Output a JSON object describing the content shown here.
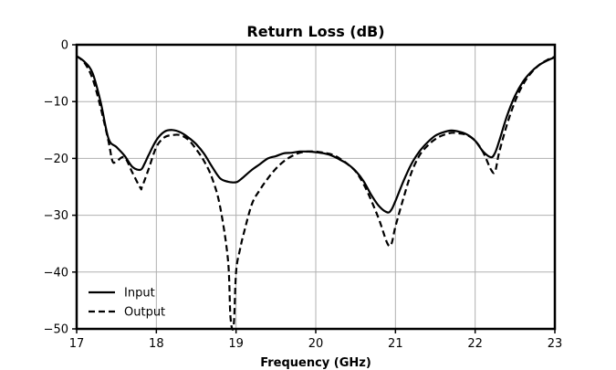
{
  "chart_data": {
    "type": "line",
    "title": "Return Loss (dB)",
    "xlabel": "Frequency (GHz)",
    "ylabel": "",
    "xlim": [
      17,
      23
    ],
    "ylim": [
      -50,
      0
    ],
    "xticks": [
      17,
      18,
      19,
      20,
      21,
      22,
      23
    ],
    "yticks": [
      0,
      -10,
      -20,
      -30,
      -40,
      -50
    ],
    "ytick_labels": [
      "0",
      "−10",
      "−20",
      "−30",
      "−40",
      "−50"
    ],
    "grid": true,
    "legend_position": "bottom-left",
    "series": [
      {
        "name": "Input",
        "style": "solid",
        "color": "#000000",
        "x": [
          17.0,
          17.1,
          17.2,
          17.3,
          17.4,
          17.5,
          17.6,
          17.7,
          17.8,
          17.85,
          17.9,
          18.0,
          18.1,
          18.2,
          18.3,
          18.4,
          18.5,
          18.6,
          18.7,
          18.8,
          18.9,
          19.0,
          19.05,
          19.1,
          19.2,
          19.3,
          19.4,
          19.5,
          19.6,
          19.7,
          19.8,
          19.9,
          20.0,
          20.1,
          20.2,
          20.3,
          20.4,
          20.5,
          20.6,
          20.7,
          20.8,
          20.9,
          20.95,
          21.0,
          21.1,
          21.2,
          21.3,
          21.4,
          21.5,
          21.6,
          21.7,
          21.8,
          21.9,
          22.0,
          22.1,
          22.2,
          22.25,
          22.3,
          22.4,
          22.5,
          22.6,
          22.7,
          22.8,
          22.9,
          23.0
        ],
        "y": [
          -2,
          -3,
          -5,
          -10,
          -16.5,
          -18,
          -19.5,
          -21.5,
          -22,
          -21,
          -19.5,
          -16.8,
          -15.3,
          -15,
          -15.4,
          -16.3,
          -17.5,
          -19.2,
          -21.5,
          -23.5,
          -24.1,
          -24.2,
          -23.8,
          -23.2,
          -22,
          -21,
          -20,
          -19.6,
          -19.1,
          -19,
          -18.8,
          -18.8,
          -18.9,
          -19.1,
          -19.5,
          -20.2,
          -21,
          -22.2,
          -24,
          -26.5,
          -28.5,
          -29.5,
          -29,
          -27.5,
          -24,
          -21,
          -18.8,
          -17.2,
          -16,
          -15.4,
          -15.1,
          -15.3,
          -15.8,
          -16.9,
          -18.8,
          -19.8,
          -19,
          -17,
          -12.5,
          -9,
          -6.5,
          -4.8,
          -3.6,
          -2.8,
          -2.2
        ]
      },
      {
        "name": "Output",
        "style": "dashed",
        "color": "#000000",
        "x": [
          17.0,
          17.1,
          17.2,
          17.3,
          17.4,
          17.45,
          17.5,
          17.6,
          17.7,
          17.8,
          17.82,
          17.9,
          18.0,
          18.1,
          18.2,
          18.3,
          18.4,
          18.5,
          18.6,
          18.7,
          18.8,
          18.9,
          18.93,
          18.97,
          19.0,
          19.05,
          19.1,
          19.2,
          19.3,
          19.4,
          19.5,
          19.6,
          19.7,
          19.8,
          19.9,
          20.0,
          20.1,
          20.2,
          20.3,
          20.4,
          20.5,
          20.6,
          20.7,
          20.8,
          20.9,
          20.95,
          21.0,
          21.1,
          21.2,
          21.3,
          21.4,
          21.5,
          21.6,
          21.7,
          21.8,
          21.9,
          22.0,
          22.1,
          22.2,
          22.25,
          22.3,
          22.4,
          22.5,
          22.6,
          22.7,
          22.8,
          22.9,
          23.0
        ],
        "y": [
          -2,
          -3.2,
          -6,
          -11,
          -17,
          -20.5,
          -20.5,
          -19.8,
          -22.5,
          -25.2,
          -25,
          -22,
          -18,
          -16.3,
          -15.9,
          -15.9,
          -16.7,
          -18.4,
          -20.5,
          -23.5,
          -28.5,
          -38,
          -48,
          -49.5,
          -40,
          -36,
          -33,
          -28,
          -25.5,
          -23.5,
          -21.8,
          -20.5,
          -19.6,
          -19,
          -18.8,
          -18.8,
          -19,
          -19.3,
          -20,
          -21,
          -22.3,
          -24.5,
          -27.5,
          -31,
          -35,
          -35,
          -32,
          -27,
          -22.5,
          -19.5,
          -17.8,
          -16.6,
          -15.9,
          -15.5,
          -15.6,
          -15.9,
          -16.9,
          -18.9,
          -22,
          -22.3,
          -19,
          -14,
          -10,
          -7,
          -5,
          -3.6,
          -2.7,
          -2.1
        ]
      }
    ]
  }
}
